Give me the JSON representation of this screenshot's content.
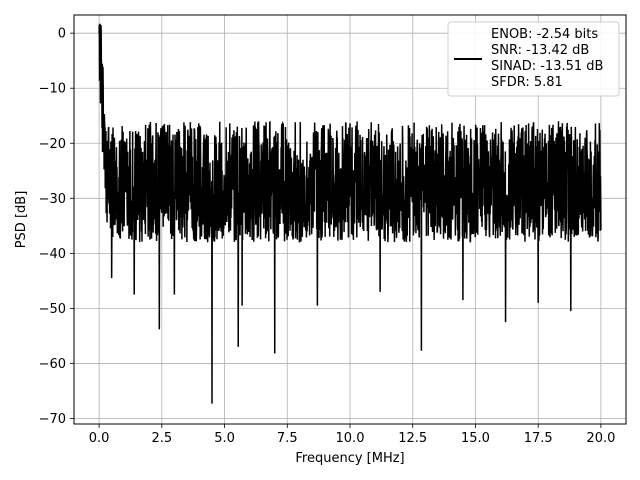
{
  "chart_data": {
    "type": "line",
    "xlabel": "Frequency [MHz]",
    "ylabel": "PSD [dB]",
    "xlim": [
      -1.0,
      21.0
    ],
    "ylim": [
      -71.0,
      3.3
    ],
    "xticks": [
      0.0,
      2.5,
      5.0,
      7.5,
      10.0,
      12.5,
      15.0,
      17.5,
      20.0
    ],
    "xtick_labels": [
      "0.0",
      "2.5",
      "5.0",
      "7.5",
      "10.0",
      "12.5",
      "15.0",
      "17.5",
      "20.0"
    ],
    "yticks": [
      0,
      -10,
      -20,
      -30,
      -40,
      -50,
      -60,
      -70
    ],
    "ytick_labels": [
      "0",
      "−10",
      "−20",
      "−30",
      "−40",
      "−50",
      "−60",
      "−70"
    ],
    "grid": true,
    "legend_position": "top-right",
    "series": [
      {
        "name": "ENOB: -2.54 bits\nSNR: -13.42 dB\nSINAD: -13.51 dB\nSFDR: 5.81",
        "legend_lines": [
          "ENOB: -2.54 bits",
          "SNR: -13.42 dB",
          "SINAD: -13.51 dB",
          "SFDR: 5.81"
        ],
        "color": "#000000",
        "x_range": [
          0.0,
          20.0
        ],
        "peak": {
          "x": 0.0,
          "y": 0.0
        },
        "baseline_level": -28,
        "typical_range": [
          -40,
          -16
        ],
        "dips": [
          {
            "x": 0.5,
            "y": -44.5
          },
          {
            "x": 1.4,
            "y": -47.5
          },
          {
            "x": 2.4,
            "y": -53.8
          },
          {
            "x": 3.0,
            "y": -47.5
          },
          {
            "x": 4.5,
            "y": -67.3
          },
          {
            "x": 5.55,
            "y": -57.0
          },
          {
            "x": 5.7,
            "y": -49.5
          },
          {
            "x": 7.0,
            "y": -58.2
          },
          {
            "x": 8.7,
            "y": -49.5
          },
          {
            "x": 11.2,
            "y": -47.0
          },
          {
            "x": 12.85,
            "y": -57.7
          },
          {
            "x": 14.5,
            "y": -48.5
          },
          {
            "x": 16.2,
            "y": -52.5
          },
          {
            "x": 17.5,
            "y": -49.0
          },
          {
            "x": 18.8,
            "y": -50.5
          }
        ]
      }
    ]
  }
}
